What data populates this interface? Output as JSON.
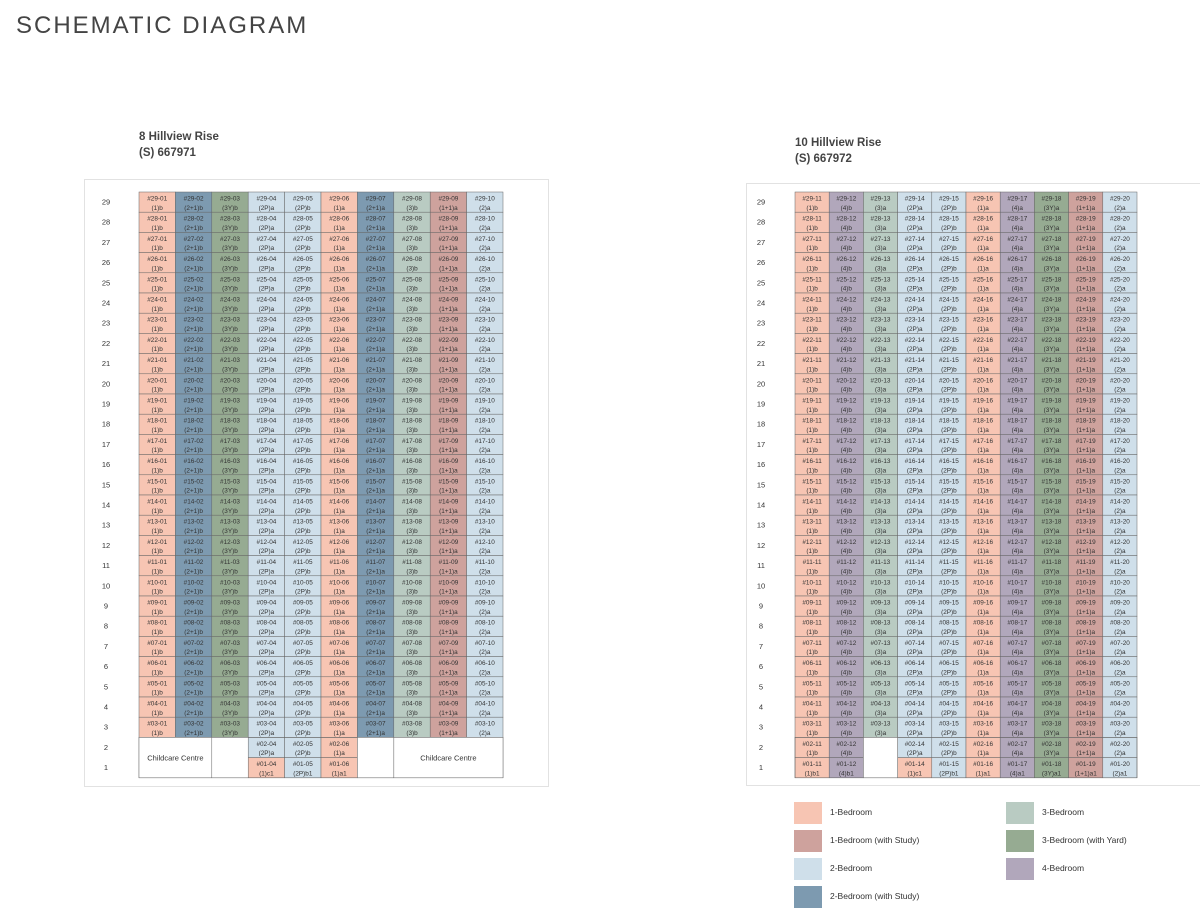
{
  "page_title": "SCHEMATIC DIAGRAM",
  "blocks": [
    {
      "name": "8 Hillview Rise",
      "postal": "(S) 667971",
      "stack_numbers": [
        "01",
        "02",
        "03",
        "04",
        "05",
        "06",
        "07",
        "08",
        "09",
        "10"
      ],
      "stack_types": [
        "(1)b",
        "(2+1)b",
        "(3Y)b",
        "(2P)a",
        "(2P)b",
        "(1)a",
        "(2+1)a",
        "(3)b",
        "(1+1)a",
        "(2)a"
      ],
      "stack_colors": [
        "#f7c5b3",
        "#7d9ab0",
        "#96ab92",
        "#cfdfea",
        "#cfdfea",
        "#f7c5b3",
        "#7d9ab0",
        "#b9cbc2",
        "#cea29d",
        "#cfdfea"
      ],
      "top_floor": 29,
      "bottom_regular_floor": 3,
      "low_floors": [
        {
          "floor": 2,
          "cells": [
            {
              "col": 3,
              "num": "#02-04",
              "type": "(2P)a",
              "color": "#cfdfea"
            },
            {
              "col": 4,
              "num": "#02-05",
              "type": "(2P)b",
              "color": "#cfdfea"
            },
            {
              "col": 5,
              "num": "#02-06",
              "type": "(1)a",
              "color": "#f7c5b3"
            }
          ]
        },
        {
          "floor": 1,
          "cells": [
            {
              "col": 3,
              "num": "#01-04",
              "type": "(1)c1",
              "color": "#f7c5b3"
            },
            {
              "col": 4,
              "num": "#01-05",
              "type": "(2P)b1",
              "color": "#cfdfea"
            },
            {
              "col": 5,
              "num": "#01-06",
              "type": "(1)a1",
              "color": "#f7c5b3"
            }
          ]
        }
      ],
      "facilities": [
        {
          "label": "Childcare Centre",
          "col": 0,
          "span": 2
        },
        {
          "label": "Childcare Centre",
          "col": 7,
          "span": 3
        }
      ]
    },
    {
      "name": "10 Hillview Rise",
      "postal": "(S) 667972",
      "stack_numbers": [
        "11",
        "12",
        "13",
        "14",
        "15",
        "16",
        "17",
        "18",
        "19",
        "20"
      ],
      "stack_types": [
        "(1)b",
        "(4)b",
        "(3)a",
        "(2P)a",
        "(2P)b",
        "(1)a",
        "(4)a",
        "(3Y)a",
        "(1+1)a",
        "(2)a"
      ],
      "stack_colors": [
        "#f7c5b3",
        "#b1a7bb",
        "#b9cbc2",
        "#cfdfea",
        "#cfdfea",
        "#f7c5b3",
        "#b1a7bb",
        "#96ab92",
        "#cea29d",
        "#cfdfea"
      ],
      "top_floor": 29,
      "bottom_regular_floor": 3,
      "low_floors": [
        {
          "floor": 2,
          "cells": [
            {
              "col": 0,
              "num": "#02-11",
              "type": "(1)b",
              "color": "#f7c5b3"
            },
            {
              "col": 1,
              "num": "#02-12",
              "type": "(4)b",
              "color": "#b1a7bb"
            },
            {
              "col": 3,
              "num": "#02-14",
              "type": "(2P)a",
              "color": "#cfdfea"
            },
            {
              "col": 4,
              "num": "#02-15",
              "type": "(2P)b",
              "color": "#cfdfea"
            },
            {
              "col": 5,
              "num": "#02-16",
              "type": "(1)a",
              "color": "#f7c5b3"
            },
            {
              "col": 6,
              "num": "#02-17",
              "type": "(4)a",
              "color": "#b1a7bb"
            },
            {
              "col": 7,
              "num": "#02-18",
              "type": "(3Y)a",
              "color": "#96ab92"
            },
            {
              "col": 8,
              "num": "#02-19",
              "type": "(1+1)a",
              "color": "#cea29d"
            },
            {
              "col": 9,
              "num": "#02-20",
              "type": "(2)a",
              "color": "#cfdfea"
            }
          ]
        },
        {
          "floor": 1,
          "cells": [
            {
              "col": 0,
              "num": "#01-11",
              "type": "(1)b1",
              "color": "#f7c5b3"
            },
            {
              "col": 1,
              "num": "#01-12",
              "type": "(4)b1",
              "color": "#b1a7bb"
            },
            {
              "col": 3,
              "num": "#01-14",
              "type": "(1)c1",
              "color": "#f7c5b3"
            },
            {
              "col": 4,
              "num": "#01-15",
              "type": "(2P)b1",
              "color": "#cfdfea"
            },
            {
              "col": 5,
              "num": "#01-16",
              "type": "(1)a1",
              "color": "#f7c5b3"
            },
            {
              "col": 6,
              "num": "#01-17",
              "type": "(4)a1",
              "color": "#b1a7bb"
            },
            {
              "col": 7,
              "num": "#01-18",
              "type": "(3Y)a1",
              "color": "#96ab92"
            },
            {
              "col": 8,
              "num": "#01-19",
              "type": "(1+1)a1",
              "color": "#cea29d"
            },
            {
              "col": 9,
              "num": "#01-20",
              "type": "(2)a1",
              "color": "#cfdfea"
            }
          ]
        }
      ],
      "facilities": []
    }
  ],
  "legend": [
    {
      "label": "1-Bedroom",
      "color": "#f7c5b3"
    },
    {
      "label": "1-Bedroom (with Study)",
      "color": "#cea29d"
    },
    {
      "label": "2-Bedroom",
      "color": "#cfdfea"
    },
    {
      "label": "2-Bedroom (with Study)",
      "color": "#7d9ab0"
    },
    {
      "label": "3-Bedroom",
      "color": "#b9cbc2"
    },
    {
      "label": "3-Bedroom (with Yard)",
      "color": "#96ab92"
    },
    {
      "label": "4-Bedroom",
      "color": "#b1a7bb"
    }
  ]
}
